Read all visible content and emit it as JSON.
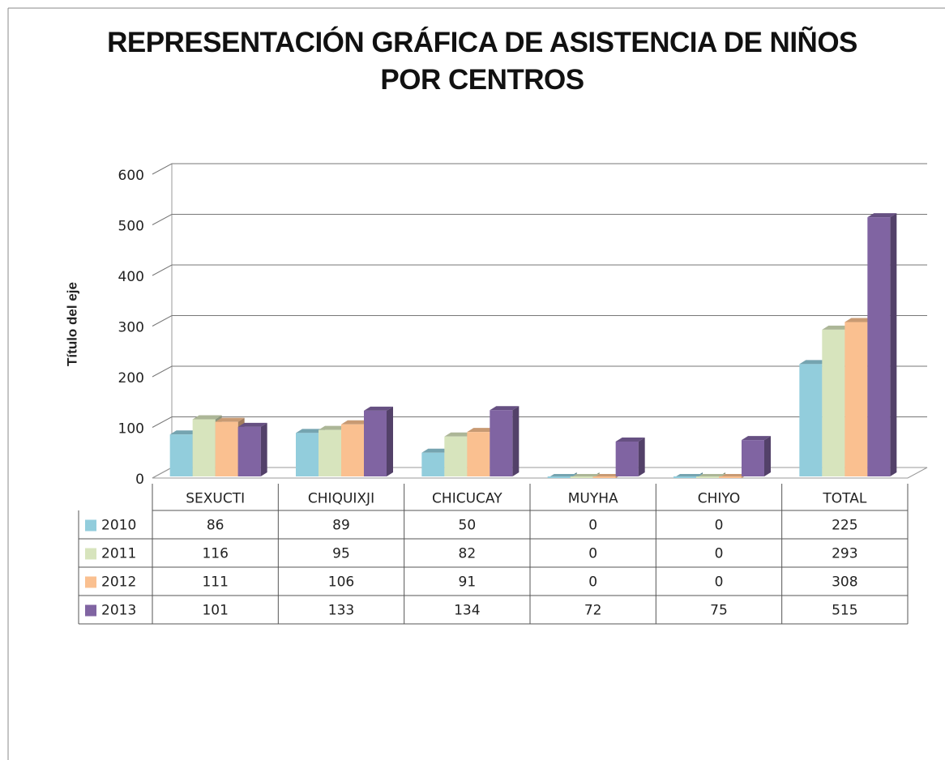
{
  "chart_data": {
    "type": "bar3d",
    "title": "REPRESENTACIÓN GRÁFICA DE ASISTENCIA DE NIÑOS POR CENTROS",
    "y_label": "Título del eje",
    "categories": [
      "SEXUCTI",
      "CHIQUIXJI",
      "CHICUCAY",
      "MUYHA",
      "CHIYO",
      "TOTAL"
    ],
    "series": [
      {
        "name": "2010",
        "color": "#92cddc",
        "values": [
          86,
          89,
          50,
          0,
          0,
          225
        ]
      },
      {
        "name": "2011",
        "color": "#d7e4bd",
        "values": [
          116,
          95,
          82,
          0,
          0,
          293
        ]
      },
      {
        "name": "2012",
        "color": "#fac090",
        "values": [
          111,
          106,
          91,
          0,
          0,
          308
        ]
      },
      {
        "name": "2013",
        "color": "#8064a2",
        "values": [
          101,
          133,
          134,
          72,
          75,
          515
        ]
      }
    ],
    "ylim": [
      0,
      600
    ],
    "yticks": [
      0,
      100,
      200,
      300,
      400,
      500,
      600
    ],
    "grid": true,
    "data_table": true
  }
}
